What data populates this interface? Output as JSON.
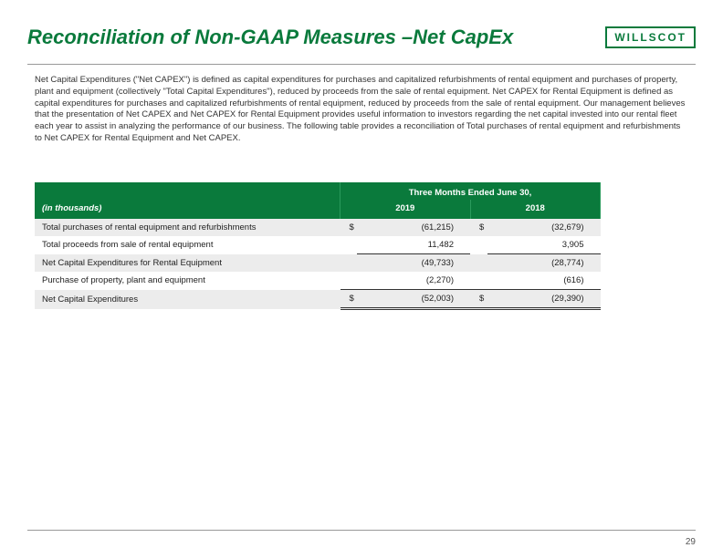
{
  "title": "Reconciliation of Non-GAAP Measures –Net CapEx",
  "logo": "WILLSCOT",
  "body": "Net Capital Expenditures (\"Net CAPEX\") is defined as capital expenditures for purchases and capitalized refurbishments of rental equipment and purchases of property, plant and equipment (collectively \"Total Capital Expenditures\"), reduced by proceeds from the sale of rental equipment. Net CAPEX for Rental Equipment is defined as capital expenditures for purchases and capitalized refurbishments of rental equipment, reduced by proceeds from the sale of rental equipment. Our management believes that the presentation of Net CAPEX and Net CAPEX for Rental Equipment provides useful information to investors regarding the net capital invested into our rental fleet each year to assist in analyzing the performance of our business. The following table provides a reconciliation of Total purchases of rental equipment and refurbishments to Net CAPEX for Rental Equipment and Net CAPEX.",
  "table": {
    "period_header": "Three Months Ended June 30,",
    "unit_header": "(in thousands)",
    "years": [
      "2019",
      "2018"
    ],
    "rows": [
      {
        "label": "Total purchases of rental equipment and refurbishments",
        "cur": "$",
        "v1": "(61,215)",
        "v2": "(32,679)",
        "shade": true
      },
      {
        "label": "Total proceeds from sale of rental equipment",
        "cur": "",
        "v1": "11,482",
        "v2": "3,905",
        "shade": false,
        "underline": true
      },
      {
        "label": "Net Capital Expenditures for Rental Equipment",
        "cur": "",
        "v1": "(49,733)",
        "v2": "(28,774)",
        "shade": true
      },
      {
        "label": "Purchase of property, plant and equipment",
        "cur": "",
        "v1": "(2,270)",
        "v2": "(616)",
        "shade": false,
        "underline": true
      },
      {
        "label": "Net Capital Expenditures",
        "cur": "$",
        "v1": "(52,003)",
        "v2": "(29,390)",
        "shade": true,
        "dbl": true
      }
    ]
  },
  "page": "29"
}
